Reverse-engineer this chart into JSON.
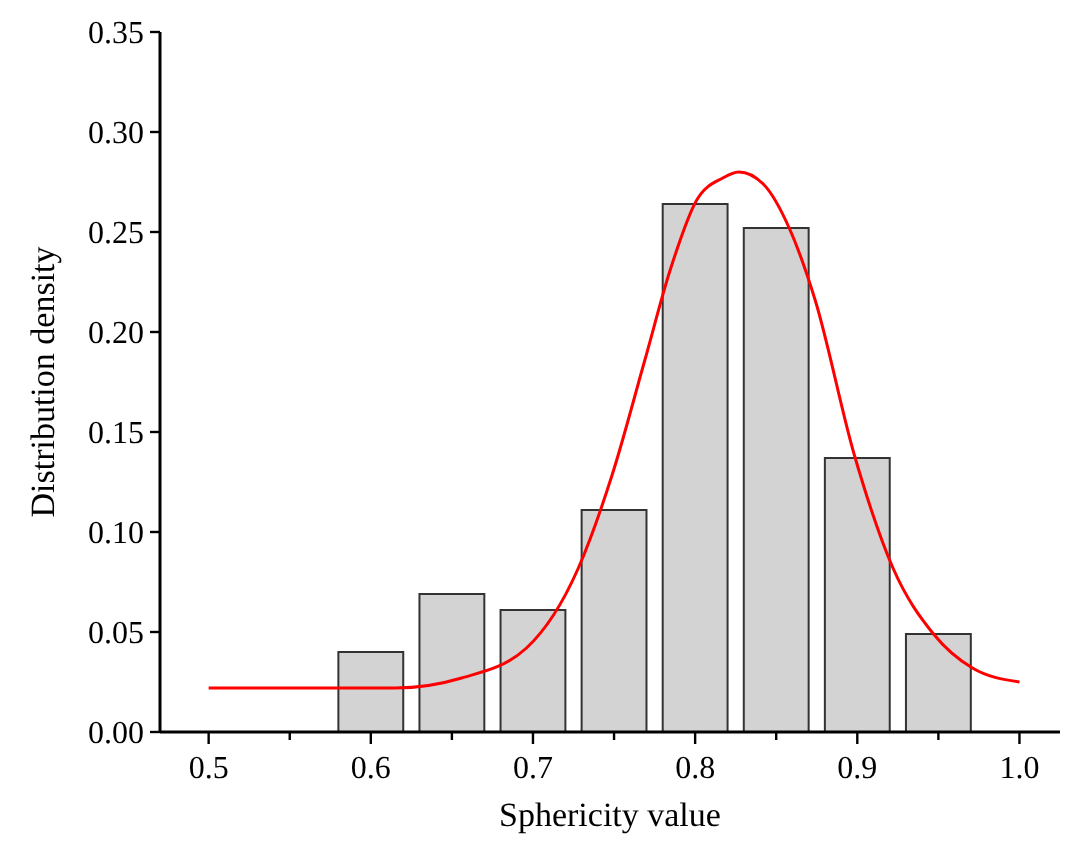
{
  "chart_data": {
    "type": "histogram",
    "xlabel": "Sphericity value",
    "ylabel": "Distribution density",
    "bins": [
      0.575,
      0.625,
      0.675,
      0.725,
      0.775,
      0.825,
      0.875,
      0.925,
      0.975
    ],
    "values": [
      0.04,
      0.069,
      0.061,
      0.111,
      0.264,
      0.252,
      0.137,
      0.049
    ],
    "color": "#d3d3d3",
    "series": [
      {
        "type": "line",
        "color": "#ff0000",
        "x": [
          0.5,
          0.55,
          0.6,
          0.615,
          0.656,
          0.696,
          0.728,
          0.749,
          0.769,
          0.785,
          0.801,
          0.817,
          0.827,
          0.842,
          0.858,
          0.874,
          0.898,
          0.922,
          0.947,
          0.971,
          1.0
        ],
        "values": [
          0.022,
          0.022,
          0.022,
          0.022,
          0.027,
          0.042,
          0.082,
          0.129,
          0.186,
          0.232,
          0.266,
          0.277,
          0.28,
          0.274,
          0.252,
          0.216,
          0.139,
          0.082,
          0.049,
          0.032,
          0.025
        ]
      }
    ],
    "xlim": [
      0.47,
      1.025
    ],
    "ylim": [
      0,
      0.35
    ],
    "xticks": [
      0.5,
      {
        "value": 0.55,
        "label": null
      },
      0.6,
      {
        "value": 0.65,
        "label": null
      },
      0.7,
      {
        "value": 0.75,
        "label": null
      },
      0.8,
      {
        "value": 0.85,
        "label": null
      },
      0.9,
      {
        "value": 0.95,
        "label": null
      },
      {
        "value": 1,
        "label": "1.0"
      }
    ],
    "yticks": [
      {
        "value": 0,
        "label": "0.00"
      },
      0.05,
      {
        "value": 0.1,
        "label": "0.10"
      },
      0.15,
      {
        "value": 0.2,
        "label": "0.20"
      },
      0.25,
      {
        "value": 0.3,
        "label": "0.30"
      },
      0.35
    ],
    "grid": false
  }
}
